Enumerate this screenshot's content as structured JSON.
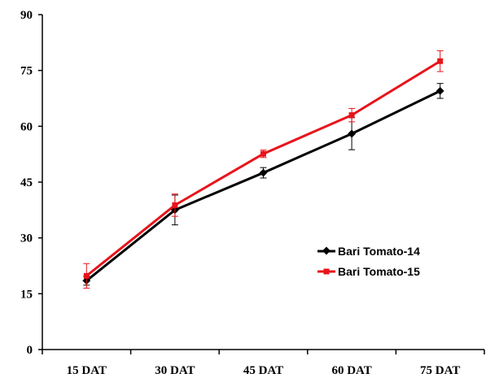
{
  "chart_data": {
    "type": "line",
    "title": "",
    "xlabel": "",
    "ylabel": "",
    "categories": [
      "15 DAT",
      "30 DAT",
      "45 DAT",
      "60 DAT",
      "75 DAT"
    ],
    "ylim": [
      0,
      90
    ],
    "yticks": [
      "0",
      "15",
      "30",
      "45",
      "60",
      "75",
      "90"
    ],
    "grid": false,
    "legend": "center-right",
    "series": [
      {
        "name": "Bari Tomato-14",
        "color": "#000000",
        "marker": "diamond",
        "values": [
          18.5,
          37.5,
          47.5,
          58.0,
          69.5
        ],
        "errors": [
          1.2,
          4.0,
          1.4,
          4.3,
          2.0
        ]
      },
      {
        "name": "Bari Tomato-15",
        "color": "#e8141b",
        "marker": "square",
        "values": [
          19.8,
          38.8,
          52.6,
          63.0,
          77.5
        ],
        "errors": [
          3.3,
          3.0,
          1.0,
          1.8,
          2.8
        ]
      }
    ]
  }
}
